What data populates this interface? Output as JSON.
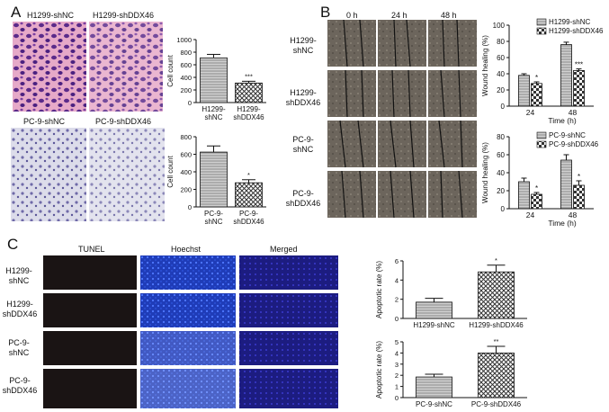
{
  "panels": {
    "a": "A",
    "b": "B",
    "c": "C"
  },
  "panel_a": {
    "h1299_labels": [
      "H1299-shNC",
      "H1299-shDDX46"
    ],
    "pc9_labels": [
      "PC-9-shNC",
      "PC-9-shDDX46"
    ]
  },
  "panel_b": {
    "time_labels": [
      "0 h",
      "24 h",
      "48 h"
    ],
    "row_labels": [
      "H1299-\nshNC",
      "H1299-\nshDDX46",
      "PC-9-\nshNC",
      "PC-9-\nshDDX46"
    ]
  },
  "panel_c": {
    "col_labels": [
      "TUNEL",
      "Hoechst",
      "Merged"
    ],
    "row_labels": [
      "H1299-\nshNC",
      "H1299-\nshDDX46",
      "PC-9-\nshNC",
      "PC-9-\nshDDX46"
    ]
  },
  "colors": {
    "bar_fill": "#c8c8c8",
    "hatch": "#444444",
    "tunel": "#1a1515",
    "hoechst": "#1f3fbf",
    "merged": "#22228a"
  },
  "chart_data": [
    {
      "id": "a_h1299",
      "type": "bar",
      "categories": [
        "H1299-\nshNC",
        "H1299-\nshDDX46"
      ],
      "values": [
        710,
        310
      ],
      "errors": [
        55,
        28
      ],
      "annotations": [
        "",
        "***"
      ],
      "ylabel": "Cell count",
      "ylim": [
        0,
        1000
      ],
      "yticks": [
        0,
        200,
        400,
        600,
        800,
        1000
      ]
    },
    {
      "id": "a_pc9",
      "type": "bar",
      "categories": [
        "PC-9-\nshNC",
        "PC-9-\nshDDX46"
      ],
      "values": [
        625,
        275
      ],
      "errors": [
        70,
        35
      ],
      "annotations": [
        "",
        "*"
      ],
      "ylabel": "Cell count",
      "ylim": [
        0,
        800
      ],
      "yticks": [
        0,
        200,
        400,
        600,
        800
      ]
    },
    {
      "id": "b_h1299",
      "type": "bar",
      "categories": [
        "24",
        "48"
      ],
      "xlabel": "Time (h)",
      "ylabel": "Wound healing (%)",
      "series": [
        {
          "name": "H1299-shNC",
          "values": [
            38,
            76
          ],
          "errors": [
            2,
            3
          ]
        },
        {
          "name": "H1299-shDDX46",
          "values": [
            28,
            44
          ],
          "errors": [
            2,
            2
          ]
        }
      ],
      "annotations": [
        "*",
        "***"
      ],
      "ylim": [
        0,
        100
      ],
      "yticks": [
        0,
        20,
        40,
        60,
        80,
        100
      ],
      "legend": "top-right"
    },
    {
      "id": "b_pc9",
      "type": "bar",
      "categories": [
        "24",
        "48"
      ],
      "xlabel": "Time (h)",
      "ylabel": "Wound healing (%)",
      "series": [
        {
          "name": "PC-9-shNC",
          "values": [
            30,
            54
          ],
          "errors": [
            4,
            6
          ]
        },
        {
          "name": "PC-9-shDDX46",
          "values": [
            16,
            26
          ],
          "errors": [
            2,
            5
          ]
        }
      ],
      "annotations": [
        "*",
        "*"
      ],
      "ylim": [
        0,
        80
      ],
      "yticks": [
        0,
        20,
        40,
        60,
        80
      ],
      "legend": "top-right"
    },
    {
      "id": "c_h1299",
      "type": "bar",
      "categories": [
        "H1299-shNC",
        "H1299-shDDX46"
      ],
      "values": [
        1.7,
        4.85
      ],
      "errors": [
        0.4,
        0.7
      ],
      "annotations": [
        "",
        "*"
      ],
      "ylabel": "Apoptotic rate (%)",
      "ylim": [
        0,
        6
      ],
      "yticks": [
        0,
        2,
        4,
        6
      ]
    },
    {
      "id": "c_pc9",
      "type": "bar",
      "categories": [
        "PC-9-shNC",
        "PC-9-shDDX46"
      ],
      "values": [
        1.85,
        4.0
      ],
      "errors": [
        0.25,
        0.6
      ],
      "annotations": [
        "",
        "**"
      ],
      "ylabel": "Apoptotic rate (%)",
      "ylim": [
        0,
        5
      ],
      "yticks": [
        0,
        1,
        2,
        3,
        4,
        5
      ]
    }
  ]
}
